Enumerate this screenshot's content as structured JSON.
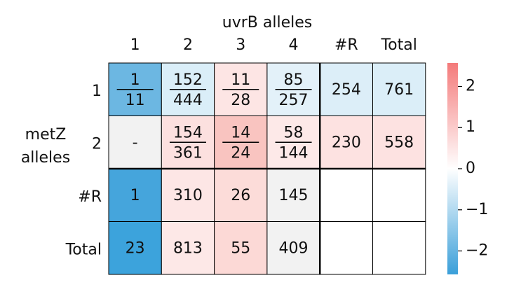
{
  "column_title": "uvrB alleles",
  "row_title": "metZ alleles",
  "columns": [
    "1",
    "2",
    "3",
    "4",
    "#R",
    "Total"
  ],
  "rows": [
    "1",
    "2",
    "#R",
    "Total"
  ],
  "cells": [
    [
      {
        "num": "1",
        "den": "11",
        "color": "#6cb7e2"
      },
      {
        "num": "152",
        "den": "444",
        "color": "#daeef8"
      },
      {
        "num": "11",
        "den": "28",
        "color": "#fde5e4"
      },
      {
        "num": "85",
        "den": "257",
        "color": "#e3f1f9"
      },
      {
        "text": "254",
        "color": "#dceef8"
      },
      {
        "text": "761",
        "color": "#dbeef8"
      }
    ],
    [
      {
        "text": "-",
        "color": "#f2f2f2"
      },
      {
        "num": "154",
        "den": "361",
        "color": "#fce0df"
      },
      {
        "num": "14",
        "den": "24",
        "color": "#f9c4c0"
      },
      {
        "num": "58",
        "den": "144",
        "color": "#fde9e8"
      },
      {
        "text": "230",
        "color": "#fde2e1"
      },
      {
        "text": "558",
        "color": "#fde2e1"
      }
    ],
    [
      {
        "text": "1",
        "color": "#45a5dc"
      },
      {
        "text": "310",
        "color": "#fde6e5"
      },
      {
        "text": "26",
        "color": "#fcdcd9"
      },
      {
        "text": "145",
        "color": "#f2f2f2"
      },
      {
        "text": "",
        "color": "#ffffff"
      },
      {
        "text": "",
        "color": "#ffffff"
      }
    ],
    [
      {
        "text": "23",
        "color": "#3ca3dc"
      },
      {
        "text": "813",
        "color": "#fde8e7"
      },
      {
        "text": "55",
        "color": "#fcd9d6"
      },
      {
        "text": "409",
        "color": "#f2f2f2"
      },
      {
        "text": "",
        "color": "#ffffff"
      },
      {
        "text": "",
        "color": "#ffffff"
      }
    ]
  ],
  "colorbar": {
    "lim": [
      -2.57,
      2.57
    ],
    "ticks": [
      2,
      1,
      0,
      {
        "value": -1,
        "label": "−1"
      },
      {
        "value": -2,
        "label": "−2"
      }
    ],
    "colors": [
      "#3a9fd9",
      "#ffffff",
      "#f47a7a"
    ]
  }
}
